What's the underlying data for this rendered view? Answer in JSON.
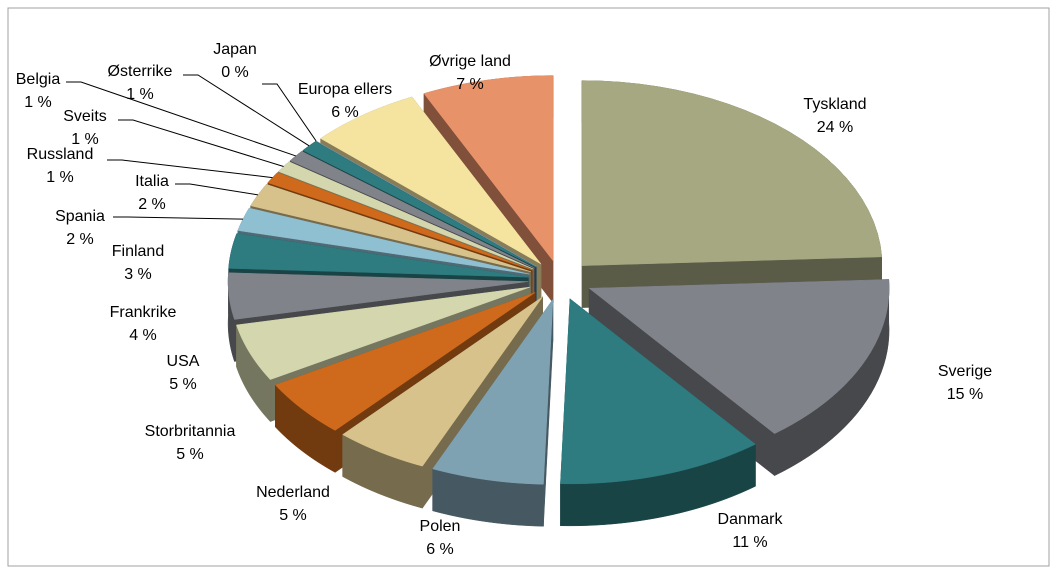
{
  "chart_data": {
    "type": "pie",
    "categories": [
      "Tyskland",
      "Sverige",
      "Danmark",
      "Polen",
      "Nederland",
      "Storbritannia",
      "USA",
      "Frankrike",
      "Finland",
      "Spania",
      "Italia",
      "Russland",
      "Sveits",
      "Belgia",
      "Østerrike",
      "Japan",
      "Europa ellers",
      "Øvrige land"
    ],
    "values": [
      24,
      15,
      11,
      6,
      5,
      5,
      5,
      4,
      3,
      2,
      2,
      1,
      1,
      1,
      1,
      0,
      6,
      7
    ],
    "value_labels": [
      "24 %",
      "15 %",
      "11 %",
      "6 %",
      "5 %",
      "5 %",
      "5 %",
      "4 %",
      "3 %",
      "2 %",
      "2 %",
      "1 %",
      "1 %",
      "1 %",
      "1 %",
      "0 %",
      "6 %",
      "7 %"
    ],
    "colors": [
      "#a6a882",
      "#80838a",
      "#2e7b80",
      "#7fa2b3",
      "#d8c28c",
      "#cf6a1c",
      "#d4d6ad",
      "#80838a",
      "#2e7b80",
      "#8fc0d2",
      "#d8c28c",
      "#cf6a1c",
      "#d4d6ad",
      "#80838a",
      "#2e7b80",
      "#7fa2b3",
      "#f5e3a0",
      "#e8926a"
    ]
  }
}
